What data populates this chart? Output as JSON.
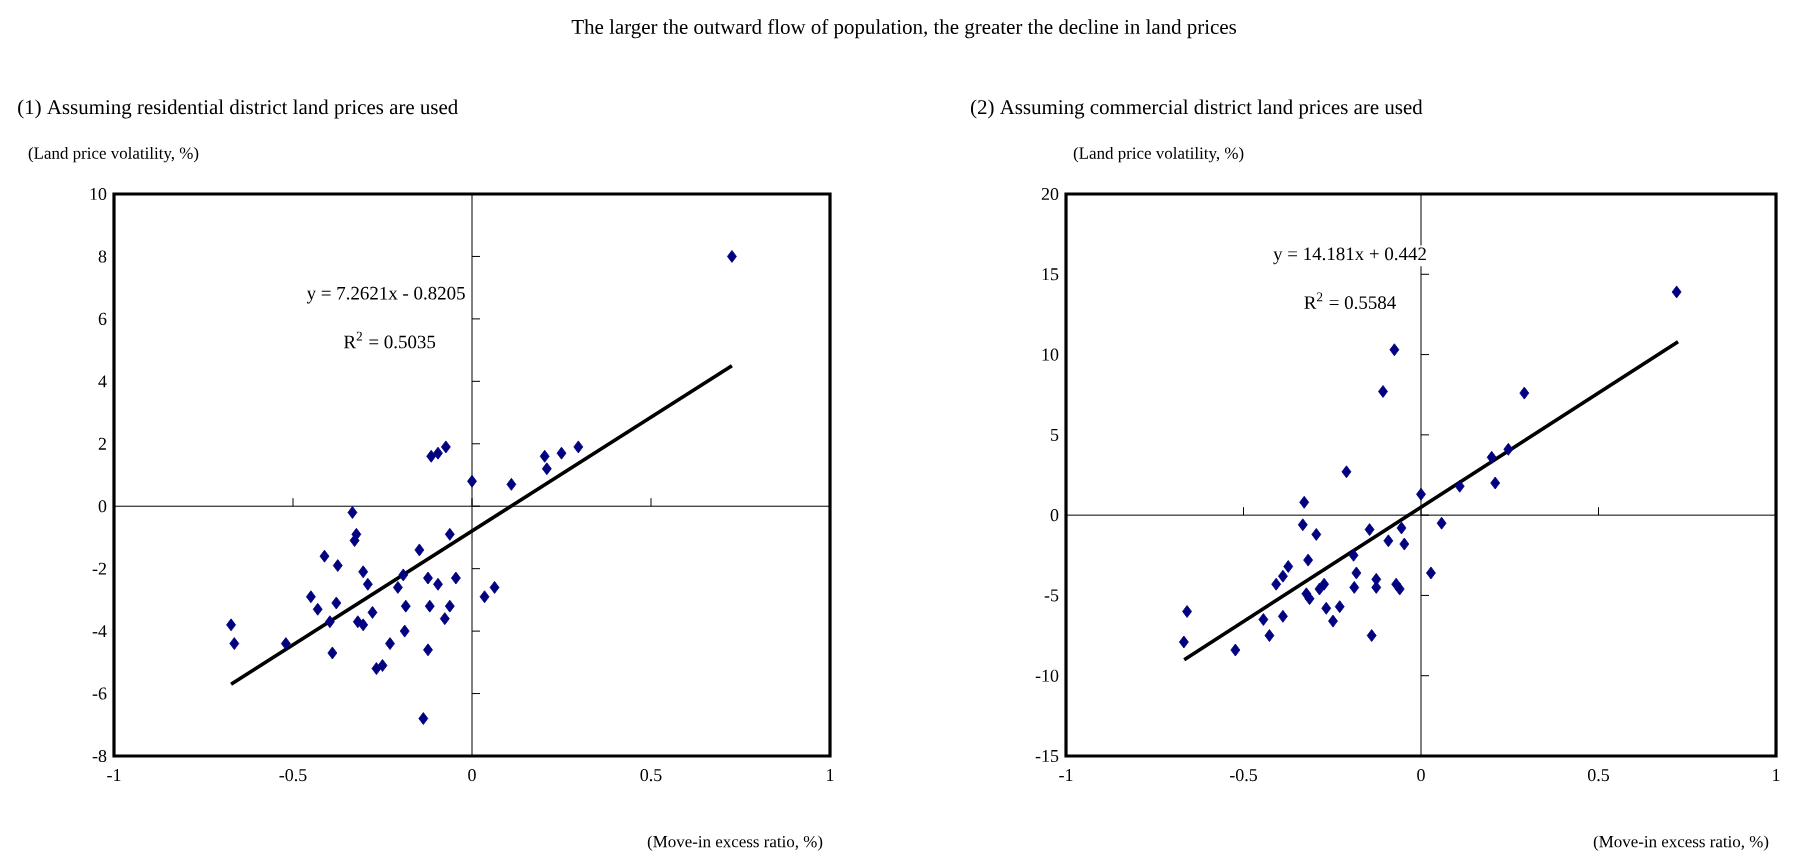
{
  "chart_data": [
    {
      "type": "scatter",
      "title": "The larger the outward flow of population, the greater the decline in land prices",
      "subtitle": "(1) Assuming residential district land prices are used",
      "ylabel": "(Land price volatility, %)",
      "xlabel": "(Move-in excess ratio, %)",
      "xlim": [
        -1,
        1
      ],
      "ylim": [
        -8,
        10
      ],
      "xticks": [
        -1,
        -0.5,
        0,
        0.5,
        1
      ],
      "yticks": [
        -8,
        -6,
        -4,
        -2,
        0,
        2,
        4,
        6,
        8,
        10
      ],
      "marker": "diamond",
      "annotations": [
        "y = 7.2621x - 0.8205",
        "R$^{2}$ = 0.5035"
      ],
      "series": [
        {
          "color": "#000080",
          "x": [
            0.726,
            -0.114,
            -0.095,
            -0.073,
            0,
            0.11,
            0.203,
            0.209,
            0.25,
            0.297,
            -0.334,
            -0.323,
            -0.328,
            -0.412,
            -0.375,
            -0.147,
            -0.062,
            -0.304,
            -0.291,
            -0.192,
            -0.207,
            -0.123,
            -0.095,
            -0.045,
            -0.45,
            -0.431,
            -0.379,
            -0.397,
            -0.319,
            -0.304,
            -0.278,
            -0.185,
            -0.118,
            -0.062,
            -0.076,
            0.035,
            0.063,
            -0.673,
            -0.664,
            -0.52,
            -0.39,
            -0.188,
            -0.229,
            -0.123,
            -0.267,
            -0.25,
            -0.136
          ],
          "values": [
            8.0,
            1.6,
            1.7,
            1.9,
            0.8,
            0.7,
            1.6,
            1.2,
            1.7,
            1.9,
            -0.2,
            -0.9,
            -1.1,
            -1.6,
            -1.9,
            -1.4,
            -0.9,
            -2.1,
            -2.5,
            -2.2,
            -2.6,
            -2.3,
            -2.5,
            -2.3,
            -2.9,
            -3.3,
            -3.1,
            -3.7,
            -3.7,
            -3.8,
            -3.4,
            -3.2,
            -3.2,
            -3.2,
            -3.6,
            -2.9,
            -2.6,
            -3.8,
            -4.4,
            -4.4,
            -4.7,
            -4.0,
            -4.4,
            -4.6,
            -5.2,
            -5.1,
            -6.8
          ]
        },
        {
          "type": "line",
          "marker": "none",
          "color": "#000000",
          "x": [
            -0.673,
            0.726
          ],
          "values": [
            -5.7,
            4.5
          ]
        }
      ]
    },
    {
      "type": "scatter",
      "subtitle": "(2) Assuming commercial district land prices are used",
      "ylabel": "(Land price volatility, %)",
      "xlabel": "(Move-in excess ratio, %)",
      "xlim": [
        -1,
        1
      ],
      "ylim": [
        -15,
        20
      ],
      "xticks": [
        -1,
        -0.5,
        0,
        0.5,
        1
      ],
      "yticks": [
        -15,
        -10,
        -5,
        0,
        5,
        10,
        15,
        20
      ],
      "marker": "diamond",
      "annotations": [
        "y = 14.181x + 0.442",
        "R$^{2}$ = 0.5584"
      ],
      "series": [
        {
          "color": "#000080",
          "x": [
            0.72,
            -0.075,
            -0.107,
            0.291,
            -0.21,
            0,
            0.109,
            0.199,
            0.246,
            0.209,
            -0.329,
            -0.333,
            -0.295,
            0.058,
            -0.145,
            -0.092,
            -0.047,
            -0.055,
            -0.19,
            -0.318,
            -0.374,
            -0.389,
            -0.408,
            -0.182,
            -0.188,
            -0.126,
            -0.126,
            -0.07,
            -0.06,
            -0.273,
            -0.286,
            -0.314,
            -0.323,
            0.028,
            -0.267,
            -0.229,
            -0.248,
            -0.444,
            -0.389,
            -0.427,
            -0.139,
            -0.659,
            -0.668,
            -0.523
          ],
          "values": [
            13.9,
            10.3,
            7.7,
            7.6,
            2.7,
            1.3,
            1.8,
            3.6,
            4.1,
            2.0,
            0.8,
            -0.6,
            -1.2,
            -0.5,
            -0.9,
            -1.6,
            -1.8,
            -0.8,
            -2.5,
            -2.8,
            -3.2,
            -3.8,
            -4.3,
            -3.6,
            -4.5,
            -4.0,
            -4.5,
            -4.3,
            -4.6,
            -4.3,
            -4.6,
            -5.2,
            -4.9,
            -3.6,
            -5.8,
            -5.7,
            -6.6,
            -6.5,
            -6.3,
            -7.5,
            -7.5,
            -6.0,
            -7.9,
            -8.4
          ]
        },
        {
          "type": "line",
          "marker": "none",
          "color": "#000000",
          "x": [
            -0.667,
            0.724
          ],
          "values": [
            -9.0,
            10.8
          ]
        }
      ]
    }
  ]
}
